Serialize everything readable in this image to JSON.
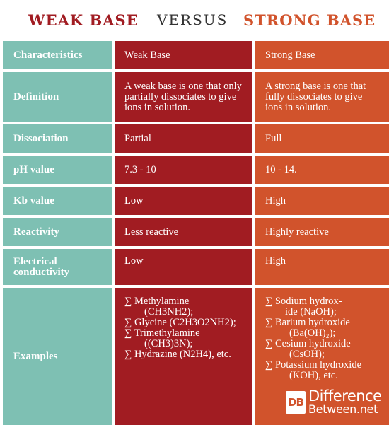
{
  "header": {
    "weak": "WEAK BASE",
    "versus": "VERSUS",
    "strong": "STRONG BASE"
  },
  "rows": [
    {
      "label": "Characteristics",
      "weak": "Weak Base",
      "strong": "Strong Base"
    },
    {
      "label": "Definition",
      "weak": "A weak base is one that only partially dissociates to give ions in solution.",
      "strong": "A strong base is one that fully dissociates to give ions in solution."
    },
    {
      "label": "Dissociation",
      "weak": "Partial",
      "strong": "Full"
    },
    {
      "label": "pH value",
      "weak": "7.3 - 10",
      "strong": "10 - 14."
    },
    {
      "label": "Kb value",
      "weak": "Low",
      "strong": "High"
    },
    {
      "label": "Reactivity",
      "weak": "Less reactive",
      "strong": "Highly reactive"
    },
    {
      "label": "Electrical conductivity",
      "weak": "Low",
      "strong": "High"
    },
    {
      "label": "Examples"
    }
  ],
  "examples": {
    "weak": [
      "∑ Methylamine",
      "(CH3NH2);",
      "∑ Glycine (C2H3O2NH2);",
      "∑ Trimethylamine",
      "((CH3)3N);",
      "∑ Hydrazine (N2H4), etc."
    ],
    "strong": [
      "∑ Sodium hydrox-",
      "ide (NaOH);",
      "∑ Barium hydroxide",
      "(Ba(OH)₂);",
      "∑ Cesium hydroxide",
      "(CsOH);",
      "∑ Potassium hydroxide",
      "(KOH), etc."
    ]
  },
  "logo": {
    "box": "DB",
    "line1": "Difference",
    "line2": "Between.net"
  },
  "colors": {
    "teal": "#7ec0b3",
    "weak": "#a11c22",
    "strong": "#d1532c"
  }
}
